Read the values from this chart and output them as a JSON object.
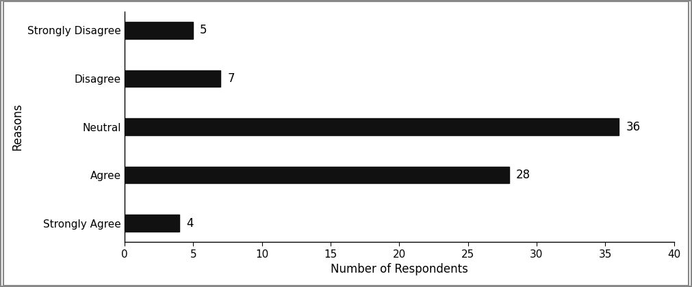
{
  "categories": [
    "Strongly Agree",
    "Agree",
    "Neutral",
    "Disagree",
    "Strongly Disagree"
  ],
  "values": [
    4,
    28,
    36,
    7,
    5
  ],
  "bar_color": "#111111",
  "xlabel": "Number of Respondents",
  "ylabel": "Reasons",
  "xlim": [
    0,
    40
  ],
  "xticks": [
    0,
    5,
    10,
    15,
    20,
    25,
    30,
    35,
    40
  ],
  "bar_height": 0.35,
  "label_fontsize": 12,
  "tick_fontsize": 11,
  "value_label_fontsize": 12,
  "background_color": "#ffffff",
  "border_color": "#000000",
  "figure_border_color": "#888888",
  "figure_border_linewidth": 1.5
}
